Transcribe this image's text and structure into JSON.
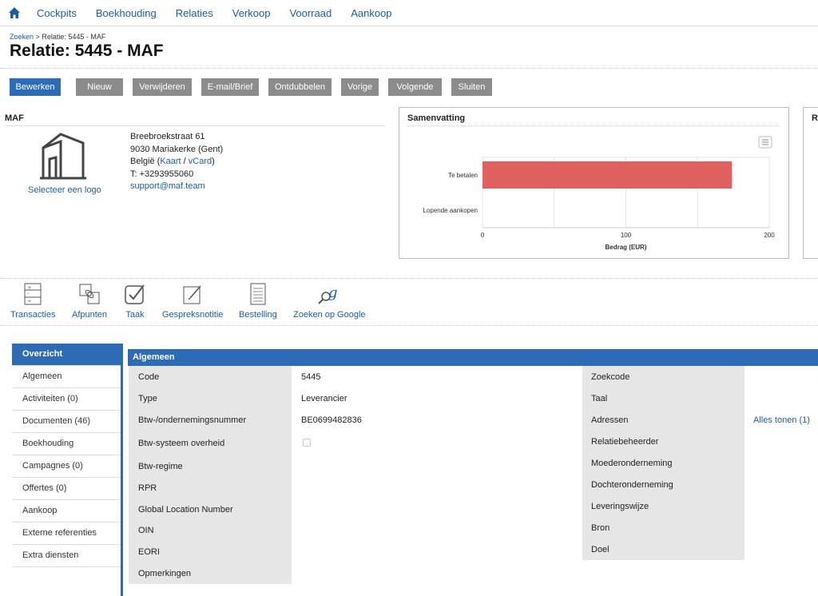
{
  "nav": {
    "items": [
      "Cockpits",
      "Boekhouding",
      "Relaties",
      "Verkoop",
      "Voorraad",
      "Aankoop"
    ]
  },
  "breadcrumb": {
    "link": "Zoeken",
    "separator": ">",
    "current": "Relatie: 5445 - MAF"
  },
  "page_title": "Relatie: 5445 - MAF",
  "toolbar": {
    "buttons": [
      "Bewerken",
      "Nieuw",
      "Verwijderen",
      "E-mail/Brief",
      "Ontdubbelen",
      "Vorige",
      "Volgende",
      "Sluiten"
    ]
  },
  "contact": {
    "title": "MAF",
    "logo_link": "Selecteer een logo",
    "street": "Breebroekstraat 61",
    "city": "9030 Mariakerke (Gent)",
    "country": "België",
    "map_link": "Kaart",
    "vcard_link": "vCard",
    "phone": "T: +3293955060",
    "email": "support@maf.team"
  },
  "summary": {
    "title": "Samenvatting",
    "right_panel_title": "R"
  },
  "chart_data": {
    "type": "bar",
    "orientation": "horizontal",
    "categories": [
      "Te betalen",
      "Lopende aankopen"
    ],
    "values": [
      174,
      0
    ],
    "xlabel": "Bedrag (EUR)",
    "ylabel": "",
    "xlim": [
      0,
      200
    ],
    "ticks": [
      0,
      100,
      200
    ],
    "color": "#e06060",
    "grid": true
  },
  "actions": [
    "Transacties",
    "Afpunten",
    "Taak",
    "Gespreksnotitie",
    "Bestelling",
    "Zoeken op Google"
  ],
  "tabs": [
    "Overzicht",
    "Algemeen",
    "Activiteiten (0)",
    "Documenten (46)",
    "Boekhouding",
    "Campagnes (0)",
    "Offertes (0)",
    "Aankoop",
    "Externe referenties",
    "Extra diensten"
  ],
  "section": {
    "title": "Algemeen",
    "left_labels": [
      "Code",
      "Type",
      "Btw-/ondernemingsnummer",
      "Btw-systeem overheid",
      "Btw-regime",
      "RPR",
      "Global Location Number",
      "OIN",
      "EORI",
      "Opmerkingen"
    ],
    "left_values": {
      "code": "5445",
      "type": "Leverancier",
      "btw": "BE0699482836"
    },
    "right_labels": [
      "Zoekcode",
      "Taal",
      "Adressen",
      "Relatiebeheerder",
      "Moederonderneming",
      "Dochteronderneming",
      "Leveringswijze",
      "Bron",
      "Doel"
    ],
    "addresses_link": "Alles tonen (1)"
  },
  "colors": {
    "accent": "#2d6cb5",
    "button_gray": "#8c8c8c",
    "bar": "#e06060"
  }
}
